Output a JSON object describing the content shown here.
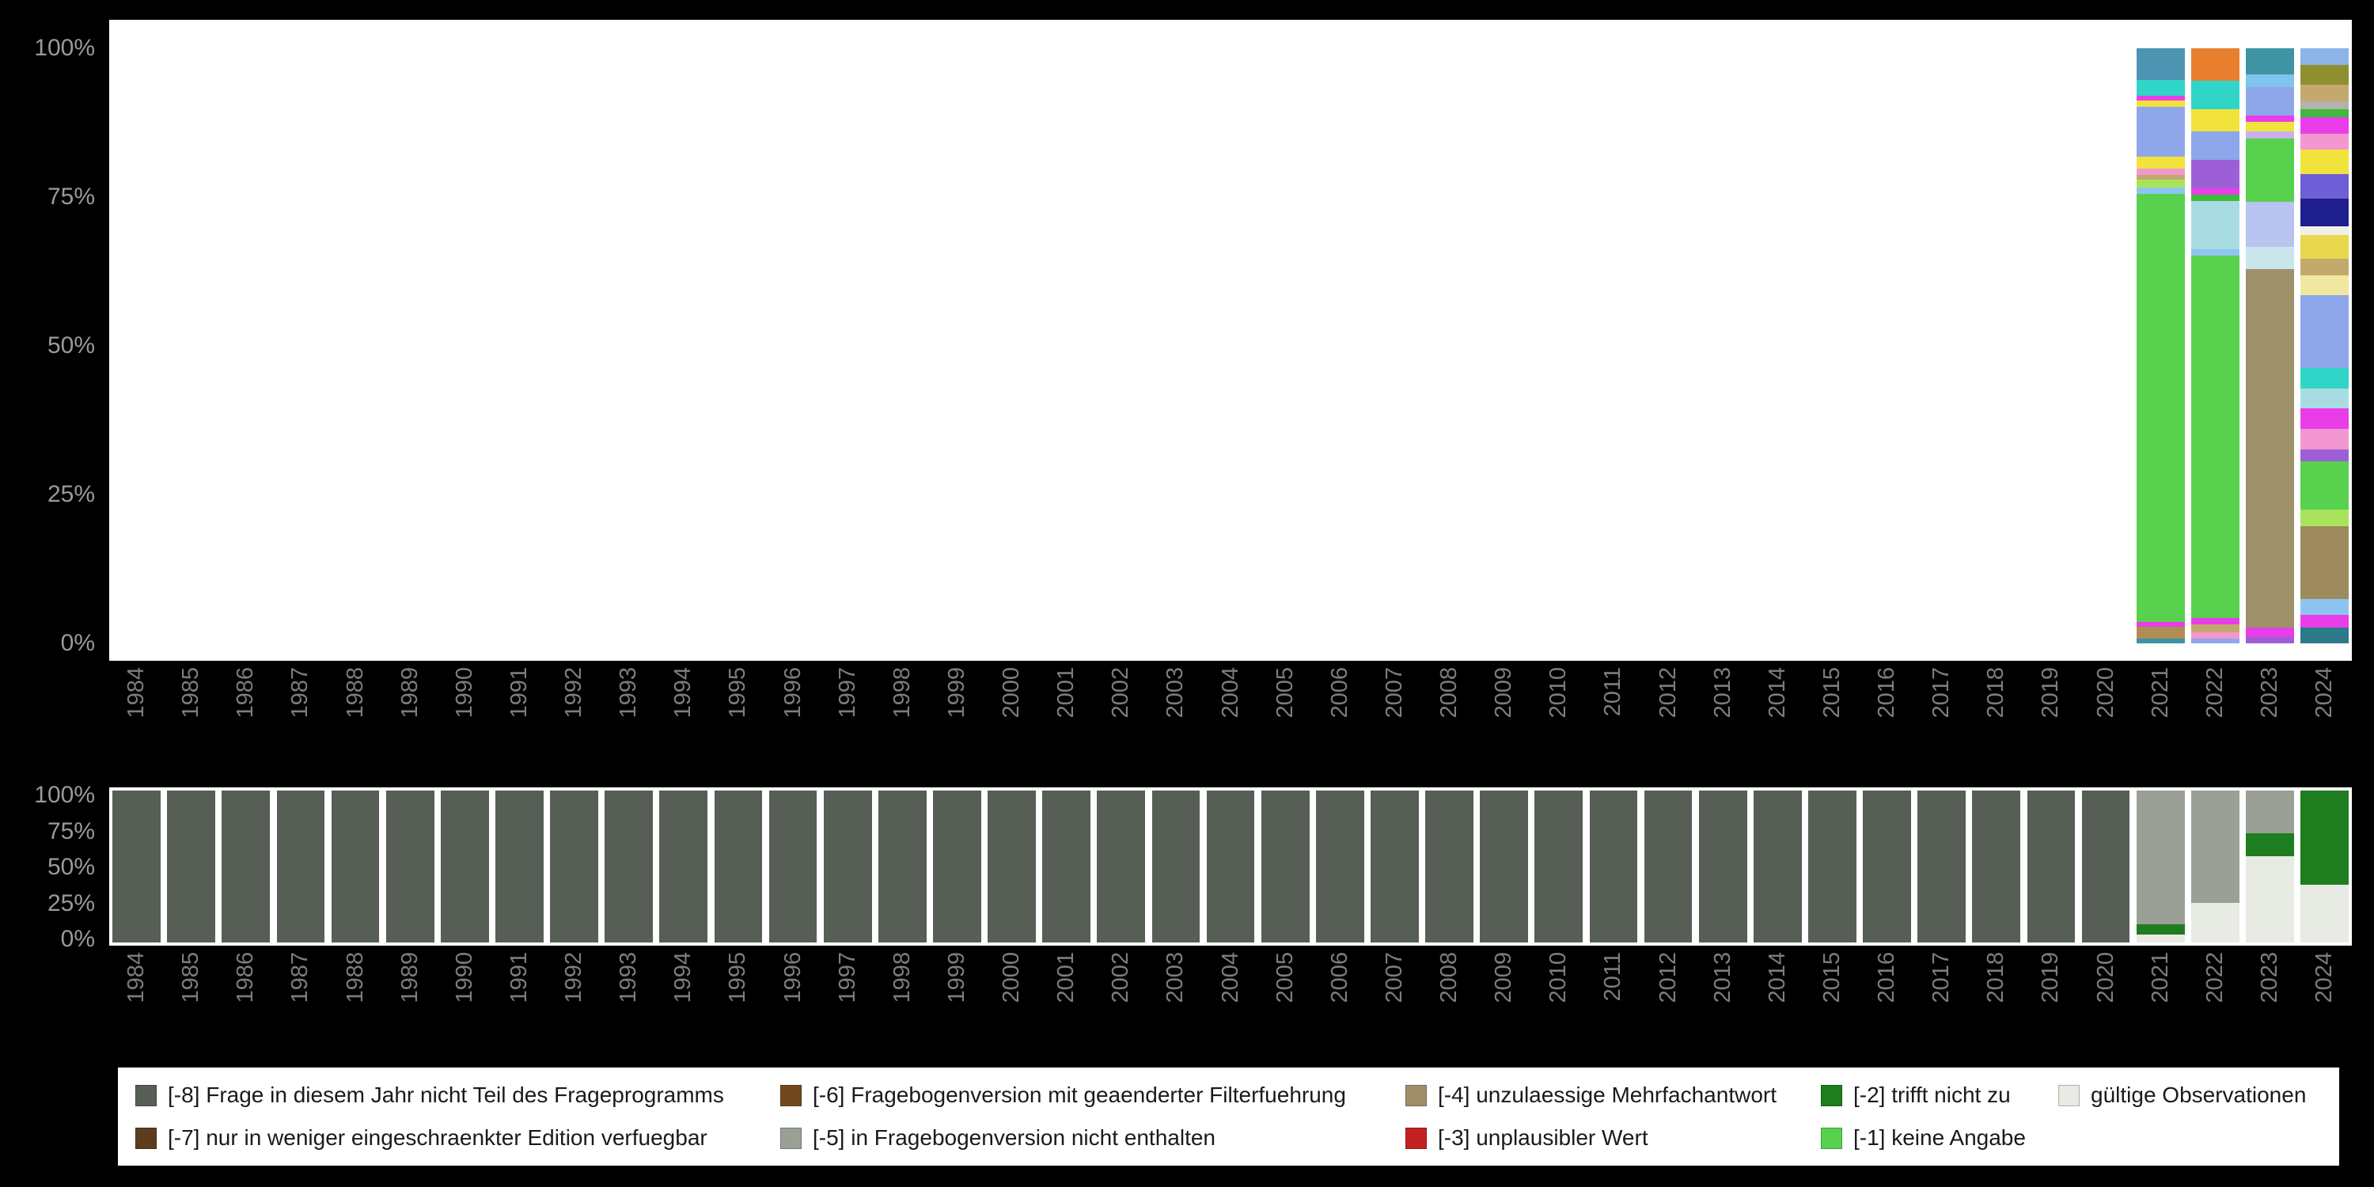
{
  "page": {
    "background_color": "#000000",
    "panel_color": "#ffffff",
    "axis_text_color": "#7d7d7d"
  },
  "chart_data": [
    {
      "type": "bar",
      "id": "values",
      "stacked": true,
      "percent": true,
      "title": "",
      "xlabel": "",
      "ylabel": "",
      "ylim": [
        0,
        100
      ],
      "grid": false,
      "y_ticks": [
        "100%",
        "75%",
        "50%",
        "25%",
        "0%"
      ],
      "categories": [
        "1984",
        "1985",
        "1986",
        "1987",
        "1988",
        "1989",
        "1990",
        "1991",
        "1992",
        "1993",
        "1994",
        "1995",
        "1996",
        "1997",
        "1998",
        "1999",
        "2000",
        "2001",
        "2002",
        "2003",
        "2004",
        "2005",
        "2006",
        "2007",
        "2008",
        "2009",
        "2010",
        "2011",
        "2012",
        "2013",
        "2014",
        "2015",
        "2016",
        "2017",
        "2018",
        "2019",
        "2020",
        "2021",
        "2022",
        "2023",
        "2024"
      ],
      "default_segments": [],
      "series_by_year": {
        "2021": [
          {
            "color": "#4d93b2",
            "value": 5
          },
          {
            "color": "#30d5c8",
            "value": 2.5
          },
          {
            "color": "#e93de9",
            "value": 0.7
          },
          {
            "color": "#f2e33c",
            "value": 1
          },
          {
            "color": "#8ea6ea",
            "value": 8
          },
          {
            "color": "#f2e33c",
            "value": 1.8
          },
          {
            "color": "#f297cf",
            "value": 1
          },
          {
            "color": "#c3a96c",
            "value": 0.8
          },
          {
            "color": "#a9e35c",
            "value": 1.2
          },
          {
            "color": "#8cc6f0",
            "value": 1
          },
          {
            "color": "#57d14e",
            "value": 68
          },
          {
            "color": "#e93de9",
            "value": 0.8
          },
          {
            "color": "#b08d52",
            "value": 1.8
          },
          {
            "color": "#3e93a5",
            "value": 0.8
          }
        ],
        "2022": [
          {
            "color": "#e87f2f",
            "value": 5
          },
          {
            "color": "#30d5c8",
            "value": 4.5
          },
          {
            "color": "#f2e33c",
            "value": 3.5
          },
          {
            "color": "#8ea6ea",
            "value": 4.5
          },
          {
            "color": "#9d5fd6",
            "value": 4.5
          },
          {
            "color": "#e93de9",
            "value": 1
          },
          {
            "color": "#3dbb3d",
            "value": 1
          },
          {
            "color": "#a9dce2",
            "value": 7.5
          },
          {
            "color": "#8cc6f0",
            "value": 1
          },
          {
            "color": "#57d14e",
            "value": 57
          },
          {
            "color": "#e93de9",
            "value": 1
          },
          {
            "color": "#c3a96c",
            "value": 1.2
          },
          {
            "color": "#f297cf",
            "value": 1
          },
          {
            "color": "#8ea6ea",
            "value": 0.8
          }
        ],
        "2023": [
          {
            "color": "#3e93a5",
            "value": 4
          },
          {
            "color": "#7fc4ec",
            "value": 2
          },
          {
            "color": "#8ea6ea",
            "value": 4.5
          },
          {
            "color": "#e93de9",
            "value": 1
          },
          {
            "color": "#f2e33c",
            "value": 1.5
          },
          {
            "color": "#c8b0e8",
            "value": 1
          },
          {
            "color": "#57d14e",
            "value": 10
          },
          {
            "color": "#b9c3f0",
            "value": 7
          },
          {
            "color": "#c9e6ec",
            "value": 3.5
          },
          {
            "color": "#9d9169",
            "value": 56
          },
          {
            "color": "#e93de9",
            "value": 1.5
          },
          {
            "color": "#9d5fd6",
            "value": 1
          }
        ],
        "2024": [
          {
            "color": "#8cb4e8",
            "value": 2
          },
          {
            "color": "#8f8f2f",
            "value": 2.5
          },
          {
            "color": "#c3a96c",
            "value": 2
          },
          {
            "color": "#b3b3ab",
            "value": 1
          },
          {
            "color": "#3dbb3d",
            "value": 1
          },
          {
            "color": "#e93de9",
            "value": 2
          },
          {
            "color": "#f297cf",
            "value": 2
          },
          {
            "color": "#f2e33c",
            "value": 3
          },
          {
            "color": "#6f5fd6",
            "value": 3
          },
          {
            "color": "#1f1f8f",
            "value": 3.5
          },
          {
            "color": "#f0f0e8",
            "value": 1
          },
          {
            "color": "#e8d84d",
            "value": 3
          },
          {
            "color": "#c3a96c",
            "value": 2
          },
          {
            "color": "#f0e8a0",
            "value": 2.5
          },
          {
            "color": "#8ea6ea",
            "value": 9
          },
          {
            "color": "#30d5c8",
            "value": 2.5
          },
          {
            "color": "#a9dce2",
            "value": 2.5
          },
          {
            "color": "#e93de9",
            "value": 2.5
          },
          {
            "color": "#f297cf",
            "value": 2.5
          },
          {
            "color": "#9d5fd6",
            "value": 1.5
          },
          {
            "color": "#57d14e",
            "value": 6
          },
          {
            "color": "#a9e35c",
            "value": 2
          },
          {
            "color": "#9d8a5f",
            "value": 9
          },
          {
            "color": "#8cc6f0",
            "value": 2
          },
          {
            "color": "#e93de9",
            "value": 1.5
          },
          {
            "color": "#2a7a8a",
            "value": 2
          }
        ]
      }
    },
    {
      "type": "bar",
      "id": "missings",
      "stacked": true,
      "percent": true,
      "title": "",
      "xlabel": "",
      "ylabel": "",
      "ylim": [
        0,
        100
      ],
      "grid": false,
      "y_ticks": [
        "100%",
        "75%",
        "50%",
        "25%",
        "0%"
      ],
      "categories": [
        "1984",
        "1985",
        "1986",
        "1987",
        "1988",
        "1989",
        "1990",
        "1991",
        "1992",
        "1993",
        "1994",
        "1995",
        "1996",
        "1997",
        "1998",
        "1999",
        "2000",
        "2001",
        "2002",
        "2003",
        "2004",
        "2005",
        "2006",
        "2007",
        "2008",
        "2009",
        "2010",
        "2011",
        "2012",
        "2013",
        "2014",
        "2015",
        "2016",
        "2017",
        "2018",
        "2019",
        "2020",
        "2021",
        "2022",
        "2023",
        "2024"
      ],
      "default_segments": [
        {
          "label": "[-8] Frage in diesem Jahr nicht Teil des Frageprogramms",
          "color": "#565e56",
          "value": 100
        }
      ],
      "series_by_year": {
        "2021": [
          {
            "label": "[-5] in Fragebogenversion nicht enthalten",
            "color": "#9aa096",
            "value": 88
          },
          {
            "label": "[-2] trifft nicht zu",
            "color": "#1e7d1e",
            "value": 7
          },
          {
            "label": "gültige Observationen",
            "color": "#e8eae4",
            "value": 5
          }
        ],
        "2022": [
          {
            "label": "[-5] in Fragebogenversion nicht enthalten",
            "color": "#9aa096",
            "value": 74
          },
          {
            "label": "gültige Observationen",
            "color": "#e8eae4",
            "value": 26
          }
        ],
        "2023": [
          {
            "label": "[-5] in Fragebogenversion nicht enthalten",
            "color": "#9aa096",
            "value": 28
          },
          {
            "label": "[-2] trifft nicht zu",
            "color": "#1e7d1e",
            "value": 15
          },
          {
            "label": "gültige Observationen",
            "color": "#e8eae4",
            "value": 57
          }
        ],
        "2024": [
          {
            "label": "[-2] trifft nicht zu",
            "color": "#1e7d1e",
            "value": 62
          },
          {
            "label": "gültige Observationen",
            "color": "#e8eae4",
            "value": 38
          }
        ]
      }
    }
  ],
  "legend": {
    "position": "bottom",
    "items": [
      {
        "label": "[-8] Frage in diesem Jahr nicht Teil des Frageprogramms",
        "color": "#565e56"
      },
      {
        "label": "[-6] Fragebogenversion mit geaenderter Filterfuehrung",
        "color": "#72491f"
      },
      {
        "label": "[-4] unzulaessige Mehrfachantwort",
        "color": "#a08d6a"
      },
      {
        "label": "[-2] trifft nicht zu",
        "color": "#1e7d1e"
      },
      {
        "label": "gültige Observationen",
        "color": "#e8eae4"
      },
      {
        "label": "[-7] nur in weniger eingeschraenkter Edition verfuegbar",
        "color": "#5c3d1e"
      },
      {
        "label": "[-5] in Fragebogenversion nicht enthalten",
        "color": "#9aa096"
      },
      {
        "label": "[-3] unplausibler Wert",
        "color": "#c42222"
      },
      {
        "label": "[-1] keine Angabe",
        "color": "#57d14e"
      }
    ]
  }
}
